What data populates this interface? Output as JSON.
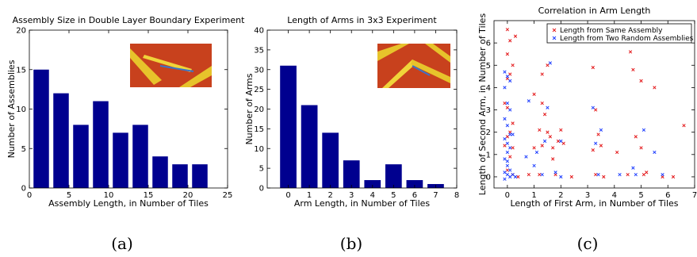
{
  "colors": {
    "bar": "#00008f",
    "same": "#e41a1c",
    "random": "#1f3fff",
    "axis": "#000000"
  },
  "chart_data": [
    {
      "type": "bar",
      "title": "Assembly Size in Double Layer Boundary Experiment",
      "xlabel": "Assembly Length, in Number of Tiles",
      "ylabel": "Number of Assemblies",
      "x": [
        1.5,
        4,
        6.5,
        9,
        11.5,
        14,
        16.5,
        19,
        21.5
      ],
      "values": [
        15,
        12,
        8,
        11,
        7,
        8,
        4,
        3,
        3
      ],
      "xlim": [
        0,
        25
      ],
      "ylim": [
        0,
        20
      ],
      "xticks": [
        "0",
        "5",
        "10",
        "15",
        "20",
        "25"
      ],
      "yticks": [
        "0",
        "5",
        "10",
        "15",
        "20"
      ],
      "caption": "(a)",
      "inset_icon": "afm-image-inset"
    },
    {
      "type": "bar",
      "title": "Length of Arms in 3x3 Experiment",
      "xlabel": "Arm Length, in Number of Tiles",
      "ylabel": "Number of Arms",
      "x": [
        0,
        1,
        2,
        3,
        4,
        5,
        6,
        7
      ],
      "values": [
        31,
        21,
        14,
        7,
        2,
        6,
        2,
        1
      ],
      "xlim": [
        -1,
        8
      ],
      "ylim": [
        0,
        40
      ],
      "xticks": [
        "0",
        "1",
        "2",
        "3",
        "4",
        "5",
        "6",
        "7",
        "8"
      ],
      "yticks": [
        "0",
        "5",
        "10",
        "15",
        "20",
        "25",
        "30",
        "35",
        "40"
      ],
      "caption": "(b)",
      "inset_icon": "afm-image-inset"
    },
    {
      "type": "scatter",
      "title": "Correlation in Arm Length",
      "xlabel": "Length of First Arm, in Number of Tiles",
      "ylabel": "Length of Second Arm, in Number of Tiles",
      "xlim": [
        -0.5,
        7
      ],
      "ylim": [
        -0.5,
        7
      ],
      "xticks": [
        "0",
        "1",
        "2",
        "3",
        "4",
        "5",
        "6",
        "7"
      ],
      "yticks": [
        "0",
        "1",
        "2",
        "3",
        "4",
        "5",
        "6"
      ],
      "legend": "top-right",
      "caption": "(c)",
      "series": [
        {
          "name": "Length from Same Assembly",
          "points": [
            [
              0.0,
              6.6
            ],
            [
              0.3,
              6.3
            ],
            [
              0.1,
              6.1
            ],
            [
              0.0,
              5.5
            ],
            [
              0.2,
              5.0
            ],
            [
              0.1,
              4.6
            ],
            [
              0.0,
              4.4
            ],
            [
              -0.1,
              3.3
            ],
            [
              0.0,
              3.1
            ],
            [
              0.2,
              2.4
            ],
            [
              0.1,
              2.0
            ],
            [
              0.0,
              1.8
            ],
            [
              -0.1,
              1.4
            ],
            [
              0.2,
              1.3
            ],
            [
              0.1,
              0.9
            ],
            [
              0.0,
              0.3
            ],
            [
              0.2,
              0.1
            ],
            [
              0.4,
              0.0
            ],
            [
              1.0,
              3.7
            ],
            [
              1.3,
              4.6
            ],
            [
              1.5,
              5.0
            ],
            [
              1.3,
              3.3
            ],
            [
              1.4,
              2.8
            ],
            [
              1.2,
              2.1
            ],
            [
              1.5,
              2.0
            ],
            [
              1.6,
              1.8
            ],
            [
              1.3,
              1.4
            ],
            [
              1.7,
              1.3
            ],
            [
              1.9,
              1.6
            ],
            [
              2.0,
              2.1
            ],
            [
              1.7,
              0.8
            ],
            [
              1.2,
              0.1
            ],
            [
              1.8,
              0.1
            ],
            [
              2.4,
              0.0
            ],
            [
              2.2,
              6.3
            ],
            [
              3.0,
              6.4
            ],
            [
              3.2,
              4.9
            ],
            [
              3.3,
              3.0
            ],
            [
              3.4,
              1.9
            ],
            [
              3.5,
              1.4
            ],
            [
              3.2,
              1.2
            ],
            [
              3.3,
              0.1
            ],
            [
              3.6,
              0.0
            ],
            [
              4.1,
              1.1
            ],
            [
              4.6,
              5.6
            ],
            [
              4.7,
              4.8
            ],
            [
              5.0,
              4.3
            ],
            [
              4.8,
              1.8
            ],
            [
              5.0,
              1.3
            ],
            [
              4.5,
              0.1
            ],
            [
              5.1,
              0.1
            ],
            [
              5.2,
              0.2
            ],
            [
              5.5,
              4.0
            ],
            [
              5.8,
              0.0
            ],
            [
              6.6,
              2.3
            ],
            [
              6.2,
              0.0
            ],
            [
              1.0,
              1.3
            ],
            [
              2.1,
              1.5
            ],
            [
              0.8,
              0.1
            ]
          ]
        },
        {
          "name": "Length from Two Random Assemblies",
          "points": [
            [
              -0.1,
              4.7
            ],
            [
              0.0,
              4.5
            ],
            [
              0.1,
              4.3
            ],
            [
              -0.1,
              4.0
            ],
            [
              0.0,
              3.3
            ],
            [
              0.1,
              3.0
            ],
            [
              -0.1,
              2.6
            ],
            [
              0.0,
              2.3
            ],
            [
              0.1,
              1.9
            ],
            [
              -0.1,
              1.7
            ],
            [
              0.0,
              1.5
            ],
            [
              0.1,
              1.3
            ],
            [
              0.0,
              1.1
            ],
            [
              -0.1,
              0.8
            ],
            [
              0.0,
              0.5
            ],
            [
              0.1,
              0.3
            ],
            [
              -0.1,
              0.2
            ],
            [
              0.0,
              0.1
            ],
            [
              0.1,
              0.0
            ],
            [
              -0.1,
              -0.1
            ],
            [
              0.2,
              0.1
            ],
            [
              0.3,
              0.0
            ],
            [
              0.8,
              3.4
            ],
            [
              0.7,
              0.9
            ],
            [
              1.0,
              0.5
            ],
            [
              1.3,
              0.1
            ],
            [
              1.4,
              1.6
            ],
            [
              1.6,
              5.1
            ],
            [
              1.5,
              3.1
            ],
            [
              1.9,
              6.5
            ],
            [
              1.8,
              0.2
            ],
            [
              2.0,
              1.6
            ],
            [
              2.0,
              0.0
            ],
            [
              3.2,
              3.1
            ],
            [
              3.3,
              1.5
            ],
            [
              3.4,
              0.1
            ],
            [
              3.5,
              2.1
            ],
            [
              4.2,
              0.1
            ],
            [
              4.7,
              0.4
            ],
            [
              4.8,
              0.1
            ],
            [
              5.1,
              2.1
            ],
            [
              5.5,
              1.1
            ],
            [
              5.8,
              0.1
            ],
            [
              1.1,
              1.1
            ],
            [
              0.2,
              1.9
            ],
            [
              0.0,
              0.7
            ]
          ]
        }
      ]
    }
  ]
}
